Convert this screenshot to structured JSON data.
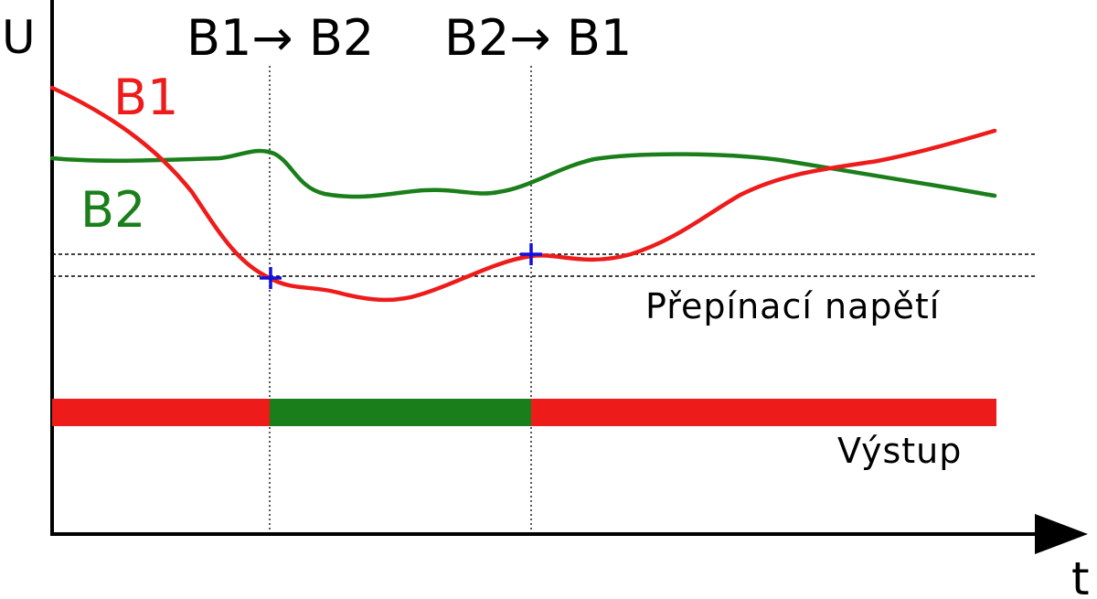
{
  "axes": {
    "y_label": "U",
    "x_label": "t"
  },
  "transitions": {
    "first": "B1→ B2",
    "second": "B2→ B1"
  },
  "signals": {
    "b1": {
      "label": "B1",
      "color": "#ee1b1b"
    },
    "b2": {
      "label": "B2",
      "color": "#1a7f1a"
    }
  },
  "threshold": {
    "label": "Přepínací napětí"
  },
  "output": {
    "label": "Výstup",
    "segments": [
      "B1",
      "B2",
      "B1"
    ]
  },
  "marker_color": "#1010e0"
}
